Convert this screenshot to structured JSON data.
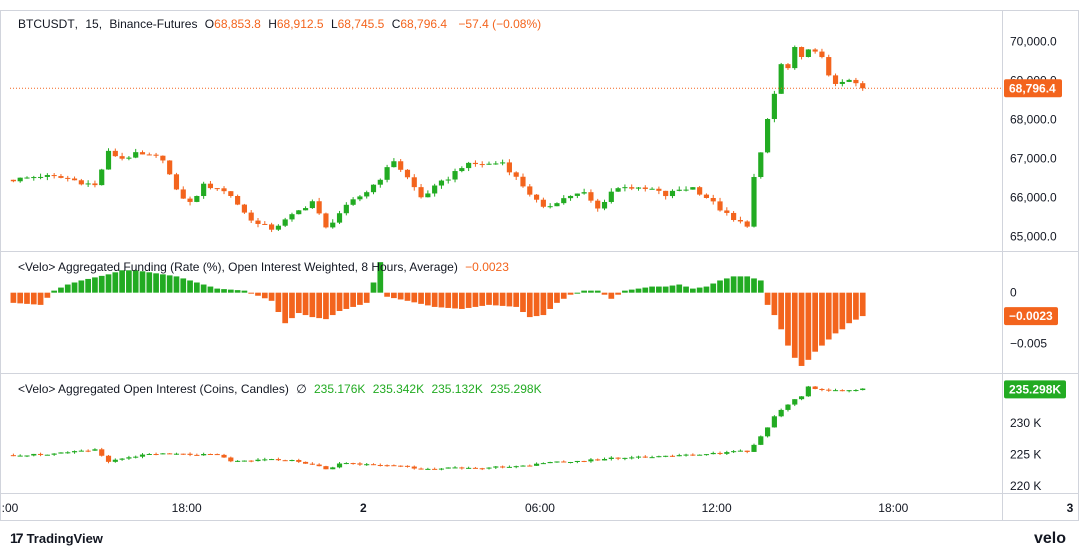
{
  "chart_data": [
    {
      "type": "candlestick",
      "symbol": "BTCUSDT",
      "interval": "15",
      "exchange": "Binance-Futures",
      "ohlc_readout": {
        "open_label": "O",
        "open": "68,853.8",
        "high_label": "H",
        "high": "68,912.5",
        "low_label": "L",
        "low": "68,745.5",
        "close_label": "C",
        "close": "68,796.4",
        "change": "−57.4 (−0.08%)"
      },
      "price_ticks": [
        "70,000.0",
        "69,000.0",
        "68,000.0",
        "67,000.0",
        "66,000.0",
        "65,000.0"
      ],
      "y_range": [
        64700,
        70600
      ],
      "last_price": 68796.4,
      "last_price_label": "68,796.4",
      "close_points": [
        [
          0,
          66450
        ],
        [
          4,
          66550
        ],
        [
          8,
          66480
        ],
        [
          12,
          66300
        ],
        [
          14,
          67150
        ],
        [
          16,
          67000
        ],
        [
          18,
          67100
        ],
        [
          20,
          67050
        ],
        [
          22,
          67000
        ],
        [
          24,
          66150
        ],
        [
          26,
          65850
        ],
        [
          28,
          66300
        ],
        [
          30,
          66250
        ],
        [
          32,
          66050
        ],
        [
          34,
          65600
        ],
        [
          36,
          65300
        ],
        [
          38,
          65200
        ],
        [
          40,
          65400
        ],
        [
          42,
          65650
        ],
        [
          44,
          65900
        ],
        [
          46,
          65200
        ],
        [
          48,
          65600
        ],
        [
          50,
          65900
        ],
        [
          52,
          66150
        ],
        [
          54,
          66500
        ],
        [
          56,
          66950
        ],
        [
          58,
          66500
        ],
        [
          60,
          66000
        ],
        [
          62,
          66250
        ],
        [
          64,
          66500
        ],
        [
          66,
          66800
        ],
        [
          68,
          66850
        ],
        [
          70,
          66850
        ],
        [
          72,
          66900
        ],
        [
          74,
          66500
        ],
        [
          76,
          66100
        ],
        [
          78,
          65700
        ],
        [
          80,
          65900
        ],
        [
          82,
          66050
        ],
        [
          84,
          66100
        ],
        [
          86,
          65700
        ],
        [
          88,
          66150
        ],
        [
          90,
          66300
        ],
        [
          92,
          66200
        ],
        [
          94,
          66200
        ],
        [
          96,
          66050
        ],
        [
          98,
          66200
        ],
        [
          100,
          66250
        ],
        [
          102,
          66000
        ],
        [
          104,
          65700
        ],
        [
          106,
          65400
        ],
        [
          108,
          65300
        ],
        [
          109,
          66500
        ],
        [
          110,
          67100
        ],
        [
          111,
          68000
        ],
        [
          112,
          68650
        ],
        [
          113,
          69400
        ],
        [
          114,
          69300
        ],
        [
          115,
          69800
        ],
        [
          116,
          69550
        ],
        [
          117,
          69850
        ],
        [
          118,
          69700
        ],
        [
          119,
          69550
        ],
        [
          120,
          69150
        ],
        [
          121,
          68950
        ],
        [
          122,
          68900
        ],
        [
          123,
          69000
        ],
        [
          124,
          68900
        ],
        [
          125,
          68796
        ]
      ]
    },
    {
      "type": "bar",
      "title": "<Velo> Aggregated Funding (Rate (%), Open Interest Weighted, 8 Hours, Average)",
      "last_value": "−0.0023",
      "value_ticks": [
        "0",
        "−0.005"
      ],
      "y_range": [
        -0.0075,
        0.0038
      ],
      "points": [
        [
          0,
          -0.001
        ],
        [
          4,
          -0.0012
        ],
        [
          6,
          0.0002
        ],
        [
          8,
          0.0008
        ],
        [
          10,
          0.0012
        ],
        [
          12,
          0.0015
        ],
        [
          14,
          0.0018
        ],
        [
          16,
          0.0022
        ],
        [
          18,
          0.0022
        ],
        [
          20,
          0.002
        ],
        [
          22,
          0.0018
        ],
        [
          24,
          0.0016
        ],
        [
          26,
          0.0012
        ],
        [
          28,
          0.0008
        ],
        [
          30,
          0.0004
        ],
        [
          34,
          0.0002
        ],
        [
          38,
          -0.0008
        ],
        [
          40,
          -0.003
        ],
        [
          42,
          -0.002
        ],
        [
          44,
          -0.0024
        ],
        [
          46,
          -0.0026
        ],
        [
          48,
          -0.0018
        ],
        [
          50,
          -0.0014
        ],
        [
          52,
          -0.001
        ],
        [
          54,
          0.003
        ],
        [
          55,
          -0.0004
        ],
        [
          58,
          -0.0008
        ],
        [
          62,
          -0.0014
        ],
        [
          66,
          -0.0016
        ],
        [
          70,
          -0.0012
        ],
        [
          74,
          -0.0014
        ],
        [
          76,
          -0.0024
        ],
        [
          78,
          -0.0022
        ],
        [
          80,
          -0.001
        ],
        [
          82,
          -0.0002
        ],
        [
          84,
          0.0002
        ],
        [
          86,
          0.0002
        ],
        [
          88,
          -0.0006
        ],
        [
          90,
          0.0002
        ],
        [
          92,
          0.0004
        ],
        [
          94,
          0.0006
        ],
        [
          96,
          0.0006
        ],
        [
          98,
          0.0008
        ],
        [
          100,
          0.0004
        ],
        [
          102,
          0.0006
        ],
        [
          104,
          0.0012
        ],
        [
          106,
          0.0016
        ],
        [
          108,
          0.0016
        ],
        [
          110,
          0.0012
        ],
        [
          111,
          -0.0012
        ],
        [
          112,
          -0.0022
        ],
        [
          113,
          -0.0036
        ],
        [
          114,
          -0.0052
        ],
        [
          115,
          -0.0064
        ],
        [
          116,
          -0.0072
        ],
        [
          117,
          -0.0066
        ],
        [
          118,
          -0.0058
        ],
        [
          119,
          -0.0052
        ],
        [
          120,
          -0.0046
        ],
        [
          121,
          -0.004
        ],
        [
          122,
          -0.0036
        ],
        [
          123,
          -0.003
        ],
        [
          125,
          -0.0023
        ]
      ]
    },
    {
      "type": "candlestick",
      "title": "<Velo> Aggregated Open Interest (Coins, Candles)",
      "ohlc_readout": {
        "marker": "∅",
        "open": "235.176K",
        "high": "235.342K",
        "low": "235.132K",
        "close": "235.298K"
      },
      "value_ticks": [
        "230 K",
        "225 K",
        "220 K"
      ],
      "y_range": [
        219400,
        237400
      ],
      "last_value_label": "235.298K",
      "points": [
        [
          0,
          224900
        ],
        [
          6,
          225100
        ],
        [
          12,
          225700
        ],
        [
          14,
          223900
        ],
        [
          18,
          224800
        ],
        [
          22,
          225100
        ],
        [
          26,
          225000
        ],
        [
          30,
          224900
        ],
        [
          32,
          223900
        ],
        [
          36,
          224100
        ],
        [
          40,
          224200
        ],
        [
          44,
          223500
        ],
        [
          46,
          222600
        ],
        [
          48,
          223600
        ],
        [
          52,
          223400
        ],
        [
          56,
          223300
        ],
        [
          60,
          222800
        ],
        [
          64,
          222900
        ],
        [
          68,
          222700
        ],
        [
          72,
          223100
        ],
        [
          76,
          223300
        ],
        [
          80,
          223800
        ],
        [
          84,
          224000
        ],
        [
          88,
          224400
        ],
        [
          92,
          224600
        ],
        [
          96,
          224800
        ],
        [
          100,
          224900
        ],
        [
          104,
          225200
        ],
        [
          106,
          225600
        ],
        [
          108,
          225500
        ],
        [
          110,
          227800
        ],
        [
          112,
          231000
        ],
        [
          114,
          233000
        ],
        [
          116,
          234300
        ],
        [
          117,
          235800
        ],
        [
          118,
          235400
        ],
        [
          120,
          235200
        ],
        [
          122,
          235100
        ],
        [
          125,
          235298
        ]
      ]
    }
  ],
  "time_axis": {
    "visible_bars": 146,
    "ticks": [
      {
        "label": ":00",
        "bar": 0
      },
      {
        "label": "18:00",
        "bar": 26
      },
      {
        "label": "2",
        "bar": 52
      },
      {
        "label": "06:00",
        "bar": 78
      },
      {
        "label": "12:00",
        "bar": 104
      },
      {
        "label": "18:00",
        "bar": 130
      },
      {
        "label": "3",
        "bar": 156
      }
    ]
  },
  "colors": {
    "up": "#22ab22",
    "down": "#f3641d",
    "text": "#131722",
    "grid": "#e0e3eb",
    "label_bg_down": "#f3641d",
    "label_bg_up": "#22ab22",
    "axis": "#d1d4dc"
  },
  "branding": {
    "left": "TradingView",
    "right": "velo"
  }
}
